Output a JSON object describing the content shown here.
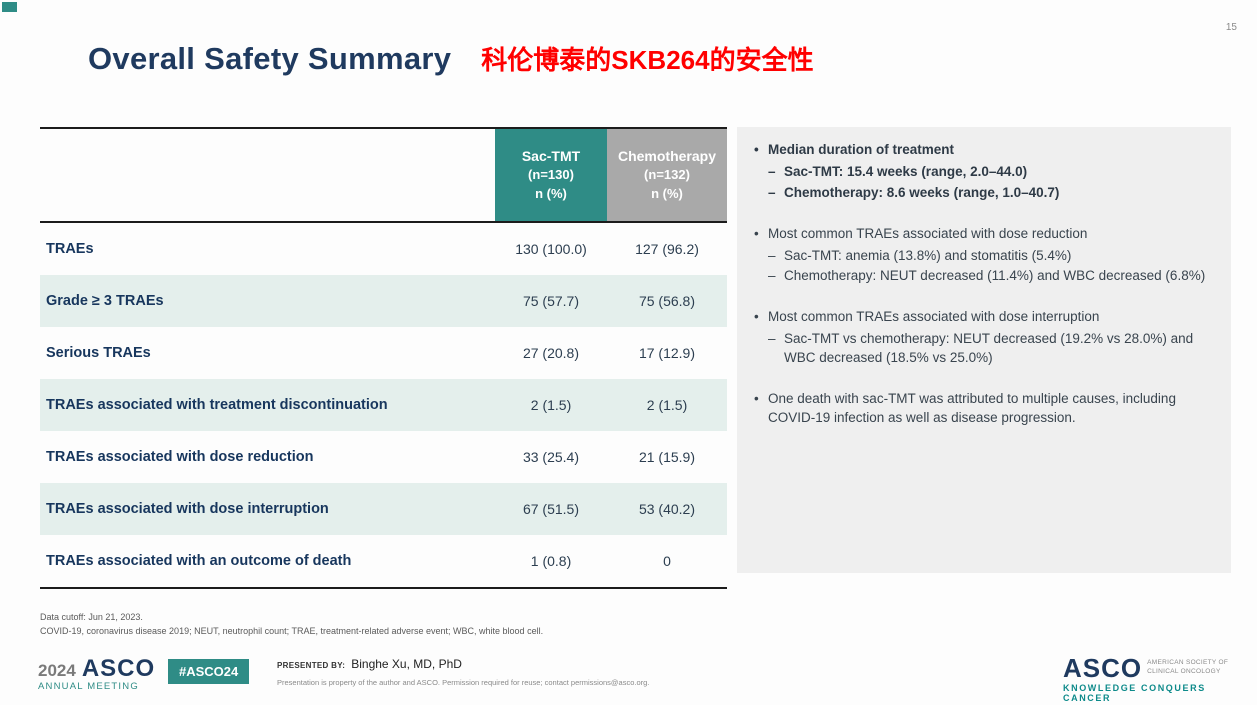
{
  "page_number": "15",
  "header": {
    "title": "Overall Safety Summary",
    "subtitle_cn": "科伦博泰的SKB264的安全性"
  },
  "table": {
    "col_sac": {
      "name": "Sac-TMT",
      "n": "(n=130)",
      "metric": "n (%)"
    },
    "col_chemo": {
      "name": "Chemotherapy",
      "n": "(n=132)",
      "metric": "n (%)"
    },
    "rows": [
      {
        "label": "TRAEs",
        "sac": "130 (100.0)",
        "chemo": "127 (96.2)"
      },
      {
        "label": "Grade ≥ 3 TRAEs",
        "sac": "75 (57.7)",
        "chemo": "75 (56.8)"
      },
      {
        "label": "Serious TRAEs",
        "sac": "27 (20.8)",
        "chemo": "17 (12.9)"
      },
      {
        "label": "TRAEs associated with treatment discontinuation",
        "sac": "2 (1.5)",
        "chemo": "2 (1.5)"
      },
      {
        "label": "TRAEs associated with dose reduction",
        "sac": "33 (25.4)",
        "chemo": "21 (15.9)"
      },
      {
        "label": "TRAEs associated with dose interruption",
        "sac": "67 (51.5)",
        "chemo": "53 (40.2)"
      },
      {
        "label": "TRAEs associated with an outcome of death",
        "sac": "1 (0.8)",
        "chemo": "0"
      }
    ]
  },
  "sidebar": {
    "groups": [
      {
        "bullet": "Median duration of treatment",
        "subs": [
          "Sac-TMT: 15.4 weeks (range, 2.0–44.0)",
          "Chemotherapy: 8.6 weeks (range, 1.0–40.7)"
        ]
      },
      {
        "bullet": "Most common TRAEs associated with dose reduction",
        "subs": [
          "Sac-TMT: anemia (13.8%) and stomatitis (5.4%)",
          "Chemotherapy: NEUT decreased (11.4%) and WBC decreased (6.8%)"
        ]
      },
      {
        "bullet": "Most common TRAEs associated with dose interruption",
        "subs": [
          "Sac-TMT vs chemotherapy: NEUT decreased (19.2% vs 28.0%) and WBC decreased (18.5% vs 25.0%)"
        ]
      },
      {
        "bullet": "One death with sac-TMT was attributed to multiple causes, including COVID-19 infection as well as disease progression.",
        "subs": []
      }
    ]
  },
  "footnotes": {
    "line1": "Data cutoff: Jun 21, 2023.",
    "line2": "COVID-19, coronavirus disease 2019; NEUT, neutrophil count; TRAE, treatment-related adverse event; WBC, white blood cell."
  },
  "footer": {
    "year": "2024",
    "asco": "ASCO",
    "meeting": "ANNUAL MEETING",
    "hashtag": "#ASCO24",
    "presented_by_label": "PRESENTED BY:",
    "presenter": "Binghe Xu, MD, PhD",
    "disclaimer": "Presentation is property of the author and ASCO. Permission required for reuse; contact permissions@asco.org.",
    "asco_logo": "ASCO",
    "asco_org_line1": "AMERICAN SOCIETY OF",
    "asco_org_line2": "CLINICAL ONCOLOGY",
    "asco_tagline": "KNOWLEDGE CONQUERS CANCER"
  },
  "colors": {
    "teal": "#2f8c86",
    "header_gray": "#a9a9a9",
    "navy": "#1f3a5f",
    "red": "#ff0000",
    "row_tint": "#e4efec",
    "panel_bg": "#efefef"
  }
}
